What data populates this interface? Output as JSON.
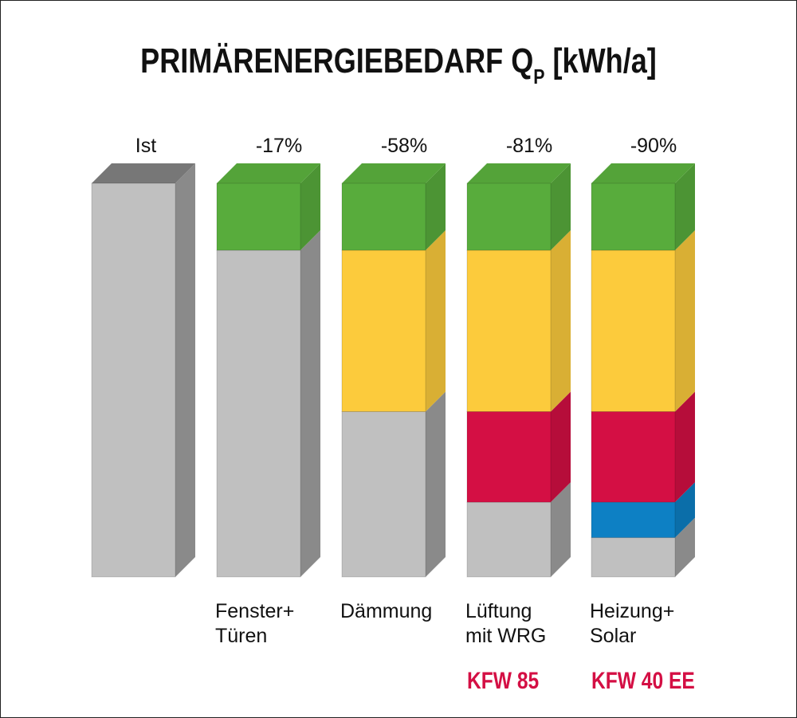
{
  "chart_data": {
    "type": "bar",
    "title_main": "PRIMÄRENERGIEBEDARF Q",
    "title_sub": "P",
    "title_unit": " [kWh/a]",
    "categories": [
      {
        "line1": "",
        "line2": ""
      },
      {
        "line1": "Fenster+",
        "line2": "Türen"
      },
      {
        "line1": "Dämmung",
        "line2": ""
      },
      {
        "line1": "Lüftung",
        "line2": "mit WRG"
      },
      {
        "line1": "Heizung+",
        "line2": "Solar"
      }
    ],
    "top_labels": [
      "Ist",
      "-17%",
      "-58%",
      "-81%",
      "-90%"
    ],
    "badges": [
      "",
      "",
      "",
      "KFW 85",
      "KFW 40 EE"
    ],
    "remaining_percent": [
      100,
      83,
      42,
      19,
      10
    ],
    "bars": [
      [
        {
          "color": "#c0c0c0",
          "value": 100
        }
      ],
      [
        {
          "color": "#c0c0c0",
          "value": 83
        },
        {
          "color": "#58ac3c",
          "value": 17
        }
      ],
      [
        {
          "color": "#c0c0c0",
          "value": 42
        },
        {
          "color": "#fccb3c",
          "value": 41
        },
        {
          "color": "#58ac3c",
          "value": 17
        }
      ],
      [
        {
          "color": "#c0c0c0",
          "value": 19
        },
        {
          "color": "#d40f44",
          "value": 23
        },
        {
          "color": "#fccb3c",
          "value": 41
        },
        {
          "color": "#58ac3c",
          "value": 17
        }
      ],
      [
        {
          "color": "#c0c0c0",
          "value": 10
        },
        {
          "color": "#0d80c4",
          "value": 9
        },
        {
          "color": "#d40f44",
          "value": 23
        },
        {
          "color": "#fccb3c",
          "value": 41
        },
        {
          "color": "#58ac3c",
          "value": 17
        }
      ]
    ],
    "ylim": [
      0,
      100
    ],
    "colors": {
      "grey": "#c0c0c0",
      "green": "#58ac3c",
      "yellow": "#fccb3c",
      "red": "#d40f44",
      "blue": "#0d80c4",
      "badge": "#d40f44"
    }
  }
}
